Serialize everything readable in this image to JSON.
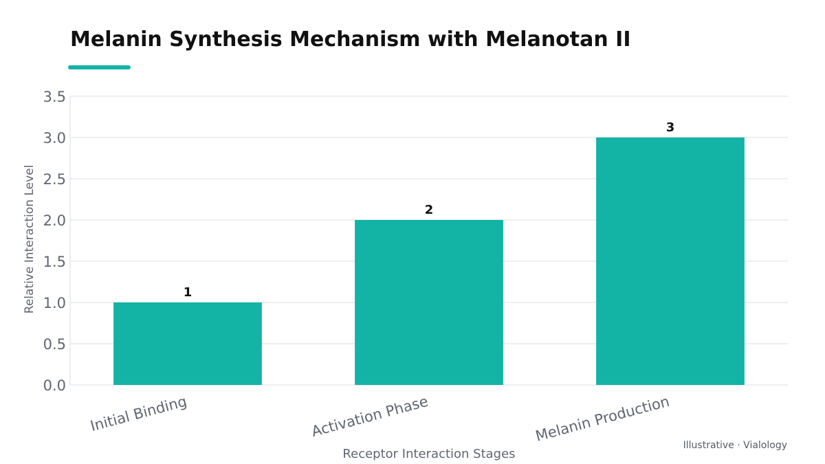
{
  "chart_data": {
    "type": "bar",
    "title": "Melanin Synthesis Mechanism with Melanotan II",
    "xlabel": "Receptor Interaction Stages",
    "ylabel": "Relative Interaction Level",
    "categories": [
      "Initial Binding",
      "Activation Phase",
      "Melanin Production"
    ],
    "values": [
      1,
      2,
      3
    ],
    "data_labels": [
      "1",
      "2",
      "3"
    ],
    "ylim": [
      0,
      3.5
    ],
    "yticks": [
      0.0,
      0.5,
      1.0,
      1.5,
      2.0,
      2.5,
      3.0,
      3.5
    ],
    "ytick_labels": [
      "0.0",
      "0.5",
      "1.0",
      "1.5",
      "2.0",
      "2.5",
      "3.0",
      "3.5"
    ],
    "grid": "horizontal",
    "legend": "none",
    "bar_color": "#13b3a6",
    "accent_color": "#13b3a6"
  },
  "footer": {
    "note": "Illustrative · Vialology"
  }
}
